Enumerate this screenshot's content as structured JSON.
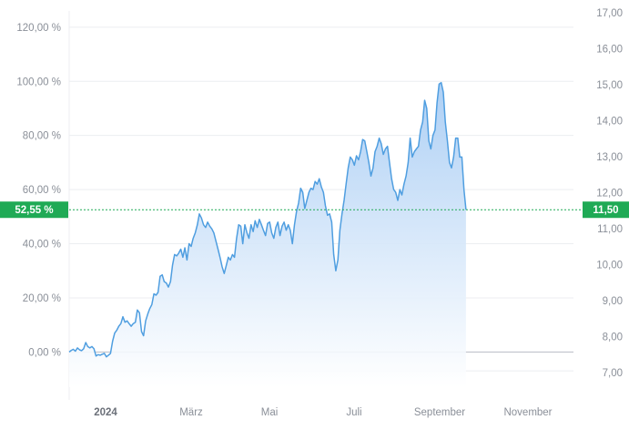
{
  "chart_data": {
    "type": "area",
    "left_axis": {
      "ticks": [
        "0,00 %",
        "20,00 %",
        "40,00 %",
        "60,00 %",
        "80,00 %",
        "100,00 %",
        "120,00 %"
      ],
      "tick_values": [
        0,
        20,
        40,
        60,
        80,
        100,
        120
      ],
      "range": [
        -13,
        126
      ]
    },
    "right_axis": {
      "ticks": [
        "7,00",
        "8,00",
        "9,00",
        "10,00",
        "11,00",
        "12,00",
        "13,00",
        "14,00",
        "15,00",
        "16,00",
        "17,00"
      ],
      "tick_values": [
        7,
        8,
        9,
        10,
        11,
        12,
        13,
        14,
        15,
        16,
        17
      ]
    },
    "x_axis": {
      "labels": [
        "2024",
        "März",
        "Mai",
        "Juli",
        "September",
        "November"
      ],
      "label_months": [
        0,
        2,
        4,
        6,
        8,
        10
      ],
      "bold_first": true,
      "range_months": [
        0,
        12.2
      ]
    },
    "current": {
      "percent_label": "52,55 %",
      "value": 52.55,
      "price_label": "11,50"
    },
    "colors": {
      "line": "#4f9ee0",
      "area_top": "#a9cdf4",
      "area_bottom": "#ffffff",
      "badge": "#1faa55",
      "grid": "#eceef1",
      "zero": "#b8bcc4"
    },
    "grid": true,
    "series": [
      {
        "points": [
          [
            0.0,
            0.0
          ],
          [
            0.05,
            0.6
          ],
          [
            0.1,
            1.0
          ],
          [
            0.15,
            0.3
          ],
          [
            0.2,
            1.5
          ],
          [
            0.25,
            0.8
          ],
          [
            0.3,
            0.5
          ],
          [
            0.35,
            1.2
          ],
          [
            0.4,
            3.5
          ],
          [
            0.45,
            2.0
          ],
          [
            0.5,
            1.5
          ],
          [
            0.55,
            2.0
          ],
          [
            0.6,
            1.2
          ],
          [
            0.65,
            -1.5
          ],
          [
            0.7,
            -1.0
          ],
          [
            0.75,
            -1.2
          ],
          [
            0.8,
            -0.8
          ],
          [
            0.85,
            -0.5
          ],
          [
            0.9,
            -1.8
          ],
          [
            0.95,
            -1.2
          ],
          [
            1.0,
            -0.5
          ],
          [
            1.05,
            4.0
          ],
          [
            1.1,
            7.0
          ],
          [
            1.15,
            8.0
          ],
          [
            1.2,
            9.5
          ],
          [
            1.25,
            10.5
          ],
          [
            1.3,
            13.0
          ],
          [
            1.35,
            11.0
          ],
          [
            1.4,
            11.5
          ],
          [
            1.45,
            10.5
          ],
          [
            1.5,
            9.5
          ],
          [
            1.55,
            10.5
          ],
          [
            1.6,
            11.0
          ],
          [
            1.65,
            15.5
          ],
          [
            1.7,
            14.5
          ],
          [
            1.75,
            7.5
          ],
          [
            1.8,
            6.0
          ],
          [
            1.85,
            11.5
          ],
          [
            1.9,
            14.0
          ],
          [
            1.95,
            16.0
          ],
          [
            2.0,
            17.5
          ],
          [
            2.05,
            21.5
          ],
          [
            2.1,
            21.0
          ],
          [
            2.15,
            22.0
          ],
          [
            2.2,
            28.0
          ],
          [
            2.25,
            28.5
          ],
          [
            2.3,
            26.0
          ],
          [
            2.35,
            25.5
          ],
          [
            2.4,
            24.0
          ],
          [
            2.45,
            26.0
          ],
          [
            2.5,
            32.0
          ],
          [
            2.55,
            36.0
          ],
          [
            2.6,
            35.5
          ],
          [
            2.65,
            36.5
          ],
          [
            2.7,
            38.0
          ],
          [
            2.75,
            35.0
          ],
          [
            2.8,
            38.5
          ],
          [
            2.85,
            34.0
          ],
          [
            2.9,
            40.0
          ],
          [
            2.95,
            39.0
          ],
          [
            3.0,
            42.0
          ],
          [
            3.05,
            44.0
          ],
          [
            3.1,
            47.0
          ],
          [
            3.15,
            51.0
          ],
          [
            3.2,
            49.5
          ],
          [
            3.25,
            47.0
          ],
          [
            3.3,
            46.0
          ],
          [
            3.35,
            48.0
          ],
          [
            3.4,
            46.5
          ],
          [
            3.45,
            45.5
          ],
          [
            3.5,
            44.0
          ],
          [
            3.55,
            41.0
          ],
          [
            3.6,
            38.0
          ],
          [
            3.65,
            35.0
          ],
          [
            3.7,
            31.5
          ],
          [
            3.75,
            29.0
          ],
          [
            3.8,
            32.0
          ],
          [
            3.85,
            35.0
          ],
          [
            3.9,
            34.0
          ],
          [
            3.95,
            36.0
          ],
          [
            4.0,
            35.0
          ],
          [
            4.05,
            42.0
          ],
          [
            4.1,
            47.0
          ],
          [
            4.15,
            46.5
          ],
          [
            4.2,
            40.0
          ],
          [
            4.25,
            47.0
          ],
          [
            4.3,
            44.0
          ],
          [
            4.35,
            42.0
          ],
          [
            4.4,
            47.0
          ],
          [
            4.45,
            44.5
          ],
          [
            4.5,
            48.5
          ],
          [
            4.55,
            46.0
          ],
          [
            4.6,
            49.0
          ],
          [
            4.65,
            47.0
          ],
          [
            4.7,
            45.0
          ],
          [
            4.75,
            43.0
          ],
          [
            4.8,
            47.5
          ],
          [
            4.85,
            48.0
          ],
          [
            4.9,
            44.0
          ],
          [
            4.95,
            42.0
          ],
          [
            5.0,
            46.0
          ],
          [
            5.05,
            48.0
          ],
          [
            5.1,
            43.0
          ],
          [
            5.15,
            46.5
          ],
          [
            5.2,
            48.0
          ],
          [
            5.25,
            45.0
          ],
          [
            5.3,
            47.0
          ],
          [
            5.35,
            45.0
          ],
          [
            5.4,
            40.0
          ],
          [
            5.45,
            47.0
          ],
          [
            5.5,
            52.0
          ],
          [
            5.55,
            55.0
          ],
          [
            5.6,
            60.5
          ],
          [
            5.65,
            59.0
          ],
          [
            5.7,
            53.0
          ],
          [
            5.75,
            56.0
          ],
          [
            5.8,
            59.0
          ],
          [
            5.85,
            60.5
          ],
          [
            5.9,
            60.0
          ],
          [
            5.95,
            63.0
          ],
          [
            6.0,
            62.0
          ],
          [
            6.05,
            64.0
          ],
          [
            6.1,
            61.0
          ],
          [
            6.15,
            59.0
          ],
          [
            6.2,
            54.0
          ],
          [
            6.25,
            50.5
          ],
          [
            6.3,
            51.0
          ],
          [
            6.35,
            48.0
          ],
          [
            6.4,
            36.0
          ],
          [
            6.45,
            30.0
          ],
          [
            6.5,
            34.0
          ],
          [
            6.55,
            45.0
          ],
          [
            6.6,
            51.0
          ],
          [
            6.65,
            56.0
          ],
          [
            6.7,
            62.0
          ],
          [
            6.75,
            68.0
          ],
          [
            6.8,
            72.0
          ],
          [
            6.85,
            71.0
          ],
          [
            6.9,
            69.0
          ],
          [
            6.95,
            72.5
          ],
          [
            7.0,
            71.0
          ],
          [
            7.05,
            74.0
          ],
          [
            7.1,
            78.5
          ],
          [
            7.15,
            78.0
          ],
          [
            7.2,
            74.0
          ],
          [
            7.25,
            70.0
          ],
          [
            7.3,
            65.0
          ],
          [
            7.35,
            68.0
          ],
          [
            7.4,
            74.0
          ],
          [
            7.45,
            76.0
          ],
          [
            7.5,
            79.0
          ],
          [
            7.55,
            77.0
          ],
          [
            7.6,
            73.0
          ],
          [
            7.65,
            75.0
          ],
          [
            7.7,
            76.0
          ],
          [
            7.75,
            70.0
          ],
          [
            7.8,
            64.0
          ],
          [
            7.85,
            60.0
          ],
          [
            7.9,
            59.0
          ],
          [
            7.95,
            56.0
          ],
          [
            8.0,
            60.0
          ],
          [
            8.05,
            58.0
          ],
          [
            8.1,
            62.0
          ],
          [
            8.15,
            65.0
          ],
          [
            8.2,
            70.0
          ],
          [
            8.25,
            79.0
          ],
          [
            8.3,
            72.0
          ],
          [
            8.35,
            74.0
          ],
          [
            8.4,
            75.0
          ],
          [
            8.45,
            76.0
          ],
          [
            8.5,
            82.0
          ],
          [
            8.55,
            85.0
          ],
          [
            8.6,
            93.0
          ],
          [
            8.65,
            90.0
          ],
          [
            8.7,
            78.0
          ],
          [
            8.75,
            75.0
          ],
          [
            8.8,
            80.0
          ],
          [
            8.85,
            82.0
          ],
          [
            8.9,
            92.0
          ],
          [
            8.95,
            99.0
          ],
          [
            9.0,
            99.5
          ],
          [
            9.05,
            96.0
          ],
          [
            9.1,
            85.0
          ],
          [
            9.15,
            78.0
          ],
          [
            9.2,
            70.0
          ],
          [
            9.25,
            68.0
          ],
          [
            9.3,
            72.0
          ],
          [
            9.35,
            79.0
          ],
          [
            9.4,
            79.0
          ],
          [
            9.45,
            72.0
          ],
          [
            9.5,
            72.0
          ],
          [
            9.55,
            60.0
          ],
          [
            9.6,
            52.55
          ]
        ]
      }
    ]
  }
}
